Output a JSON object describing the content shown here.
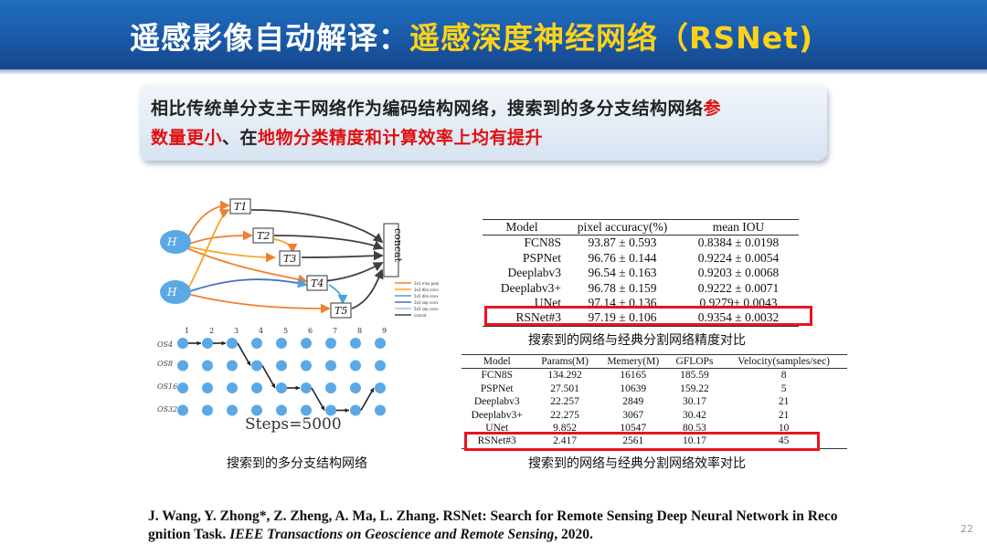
{
  "title": {
    "prefix": "遥感影像自动解译：",
    "highlight": "遥感深度神经网络（RSNet)"
  },
  "highlight_box": {
    "line1_normal": "相比传统单分支主干网络作为编码结构网络，搜索到的多分支结构网络",
    "line1_red": "参",
    "line2_red1": "数量更小",
    "line2_normal": "、在",
    "line2_red2": "地物分类精度和计算效率上均有提升"
  },
  "figure": {
    "node_labels": [
      "H",
      "H",
      "T1",
      "T2",
      "T3",
      "T4",
      "T5"
    ],
    "concat_label": "concat",
    "legend": [
      "3x3 max pool",
      "3x3 dila conv",
      "5x5 dila conv",
      "3x3 sep conv",
      "5x5 sep conv",
      "concat"
    ],
    "legend_colors": [
      "#f08030",
      "#f5a623",
      "#5a9bd5",
      "#4472c4",
      "#9dc3e6",
      "#404040"
    ],
    "os_labels": [
      "OS4",
      "OS8",
      "OS16",
      "OS32"
    ],
    "column_numbers": [
      "1",
      "2",
      "3",
      "4",
      "5",
      "6",
      "7",
      "8",
      "9"
    ],
    "path_levels": [
      0,
      0,
      0,
      1,
      2,
      2,
      3,
      3,
      2
    ],
    "steps_label": "Steps=5000",
    "caption": "搜索到的多分支结构网络"
  },
  "accuracy_table": {
    "headers": [
      "Model",
      "pixel accuracy(%)",
      "mean IOU"
    ],
    "rows": [
      [
        "FCN8S",
        "93.87 ± 0.593",
        "0.8384 ± 0.0198"
      ],
      [
        "PSPNet",
        "96.76 ± 0.144",
        "0.9224 ± 0.0054"
      ],
      [
        "Deeplabv3",
        "96.54 ± 0.163",
        "0.9203 ± 0.0068"
      ],
      [
        "Deeplabv3+",
        "96.78 ± 0.159",
        "0.9222 ± 0.0071"
      ],
      [
        "UNet",
        "97.14 ± 0.136",
        "0.9279± 0.0043"
      ],
      [
        "RSNet#3",
        "97.19 ± 0.106",
        "0.9354 ± 0.0032"
      ]
    ],
    "caption": "搜索到的网络与经典分割网络精度对比"
  },
  "efficiency_table": {
    "headers": [
      "Model",
      "Params(M)",
      "Memery(M)",
      "GFLOPs",
      "Velocity(samples/sec)"
    ],
    "rows": [
      [
        "FCN8S",
        "134.292",
        "16165",
        "185.59",
        "8"
      ],
      [
        "PSPNet",
        "27.501",
        "10639",
        "159.22",
        "5"
      ],
      [
        "Deeplabv3",
        "22.257",
        "2849",
        "30.17",
        "21"
      ],
      [
        "Deeplabv3+",
        "22.275",
        "3067",
        "30.42",
        "21"
      ],
      [
        "UNet",
        "9.852",
        "10547",
        "80.53",
        "10"
      ],
      [
        "RSNet#3",
        "2.417",
        "2561",
        "10.17",
        "45"
      ]
    ],
    "caption": "搜索到的网络与经典分割网络效率对比"
  },
  "reference": {
    "authors": "J. Wang, Y. Zhong*, Z. Zheng, A. Ma, L. Zhang. RSNet: Search for Remote Sensing Deep Neural Network in Reco gnition Task. ",
    "journal": "IEEE Transactions on Geoscience and Remote Sensing",
    "year": ", 2020."
  },
  "page_number": "22",
  "colors": {
    "title_bar": "#1a5aa8",
    "title_highlight": "#ffd21a",
    "emphasis_red": "#e01010",
    "box_red": "#e8141e",
    "node_blue": "#5aa9e6"
  }
}
